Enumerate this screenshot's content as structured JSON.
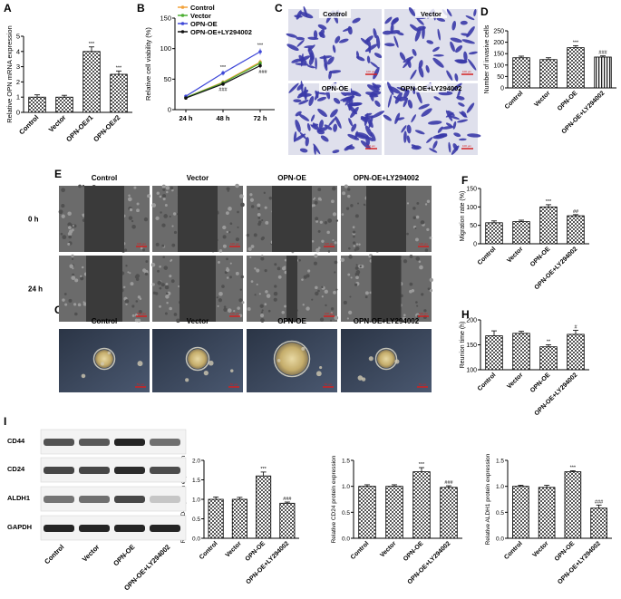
{
  "panel_labels": [
    "A",
    "B",
    "C",
    "D",
    "E",
    "F",
    "G",
    "H",
    "I"
  ],
  "colors": {
    "bar_fill_pattern": "#555555",
    "control": "#f2a23c",
    "vector": "#4caf32",
    "opn_oe": "#3f48d8",
    "opn_ly": "#111111",
    "invasion_stain": "#3a3aa8",
    "scratch_bg": "#3a3a3a",
    "sphere_bg": "#2d3a4e",
    "scale_bar": "#d42020"
  },
  "invasion_images": {
    "labels": [
      "Control",
      "Vector",
      "OPN-OE",
      "OPN-OE+LY294002"
    ],
    "scale_label": "100 μm"
  },
  "scratch_images": {
    "columns": [
      "Control",
      "Vector",
      "OPN-OE",
      "OPN-OE+LY294002"
    ],
    "rows": [
      "0 h",
      "24 h"
    ],
    "scale_label": "100 μm"
  },
  "sphere_images": {
    "columns": [
      "Control",
      "Vector",
      "OPN-OE",
      "OPN-OE+LY294002"
    ],
    "scale_label": "50 μm"
  },
  "western_blot": {
    "bands": [
      "CD44",
      "CD24",
      "ALDH1",
      "GAPDH"
    ],
    "lanes": [
      "Control",
      "Vector",
      "OPN-OE",
      "OPN-OE+LY294002"
    ]
  },
  "chart_data": [
    {
      "panel": "A",
      "type": "bar",
      "categories": [
        "Control",
        "Vector",
        "OPN-OE#1",
        "OPN-OE#2"
      ],
      "values": [
        1.0,
        1.0,
        4.0,
        2.5
      ],
      "errors": [
        0.15,
        0.12,
        0.3,
        0.22
      ],
      "significance": [
        "",
        "",
        "***",
        "***"
      ],
      "ylabel": "Relative OPN mRNA expression",
      "ylim": [
        0,
        5
      ],
      "yticks": [
        "0",
        "1",
        "2",
        "3",
        "4",
        "5"
      ]
    },
    {
      "panel": "B",
      "type": "line",
      "x": [
        "24 h",
        "48 h",
        "72 h"
      ],
      "series": [
        {
          "name": "Control",
          "values": [
            20,
            45,
            78
          ],
          "errors": [
            1.5,
            3,
            4
          ]
        },
        {
          "name": "Vector",
          "values": [
            20,
            44,
            76
          ],
          "errors": [
            1.5,
            3,
            4
          ]
        },
        {
          "name": "OPN-OE",
          "values": [
            22,
            60,
            95
          ],
          "errors": [
            2,
            4,
            5
          ]
        },
        {
          "name": "OPN-OE+LY294002",
          "values": [
            19,
            42,
            72
          ],
          "errors": [
            1.5,
            3,
            4
          ]
        }
      ],
      "annotations_upper": [
        "",
        "***",
        "***"
      ],
      "annotations_lower": [
        "",
        "###",
        "###"
      ],
      "ylabel": "Relative cell viability (%)",
      "ylim": [
        0,
        150
      ],
      "yticks": [
        "0",
        "50",
        "100",
        "150"
      ],
      "legend_placement": "top-left"
    },
    {
      "panel": "D",
      "type": "bar",
      "categories": [
        "Control",
        "Vector",
        "OPN-OE",
        "OPN-OE+LY294002"
      ],
      "values": [
        132,
        124,
        176,
        135
      ],
      "errors": [
        7,
        8,
        9,
        5
      ],
      "significance": [
        "",
        "",
        "***",
        "###"
      ],
      "ylabel": "Number of invasive cells",
      "ylim": [
        0,
        250
      ],
      "yticks": [
        "0",
        "50",
        "100",
        "150",
        "200",
        "250"
      ]
    },
    {
      "panel": "F",
      "type": "bar",
      "categories": [
        "Control",
        "Vector",
        "OPN-OE",
        "OPN-OE+LY294002"
      ],
      "values": [
        57,
        60,
        100,
        76
      ],
      "errors": [
        5,
        4,
        6,
        3
      ],
      "significance": [
        "",
        "",
        "***",
        "##"
      ],
      "ylabel": "Migration rate (%)",
      "ylim": [
        0,
        150
      ],
      "yticks": [
        "0",
        "50",
        "100",
        "150"
      ]
    },
    {
      "panel": "H",
      "type": "bar",
      "categories": [
        "Control",
        "Vector",
        "OPN-OE",
        "OPN-OE+LY294002"
      ],
      "values": [
        168,
        173,
        146,
        171
      ],
      "errors": [
        10,
        4,
        4,
        8
      ],
      "significance": [
        "",
        "",
        "**",
        "#"
      ],
      "ylabel": "Reunion time (h)",
      "ylim": [
        100,
        200
      ],
      "yticks": [
        "100",
        "150",
        "200"
      ]
    },
    {
      "panel": "I-CD44",
      "type": "bar",
      "categories": [
        "Control",
        "Vector",
        "OPN-OE",
        "OPN-OE+LY294002"
      ],
      "values": [
        1.0,
        1.0,
        1.6,
        0.9
      ],
      "errors": [
        0.06,
        0.05,
        0.1,
        0.03
      ],
      "significance": [
        "",
        "",
        "***",
        "###"
      ],
      "ylabel": "Relative CD44 protein expression",
      "ylim": [
        0,
        2.0
      ],
      "yticks": [
        "0.0",
        "0.5",
        "1.0",
        "1.5",
        "2.0"
      ]
    },
    {
      "panel": "I-CD24",
      "type": "bar",
      "categories": [
        "Control",
        "Vector",
        "OPN-OE",
        "OPN-OE+LY294002"
      ],
      "values": [
        1.0,
        1.0,
        1.28,
        0.98
      ],
      "errors": [
        0.03,
        0.03,
        0.08,
        0.03
      ],
      "significance": [
        "",
        "",
        "***",
        "###"
      ],
      "ylabel": "Relative CD24 protein expression",
      "ylim": [
        0,
        1.5
      ],
      "yticks": [
        "0.0",
        "0.5",
        "1.0",
        "1.5"
      ]
    },
    {
      "panel": "I-ALDH1",
      "type": "bar",
      "categories": [
        "Control",
        "Vector",
        "OPN-OE",
        "OPN-OE+LY294002"
      ],
      "values": [
        1.0,
        0.98,
        1.28,
        0.58
      ],
      "errors": [
        0.02,
        0.04,
        0.02,
        0.06
      ],
      "significance": [
        "",
        "",
        "***",
        "###"
      ],
      "ylabel": "Relative ALDH1 protein expression",
      "ylim": [
        0,
        1.5
      ],
      "yticks": [
        "0.0",
        "0.5",
        "1.0",
        "1.5"
      ]
    }
  ]
}
